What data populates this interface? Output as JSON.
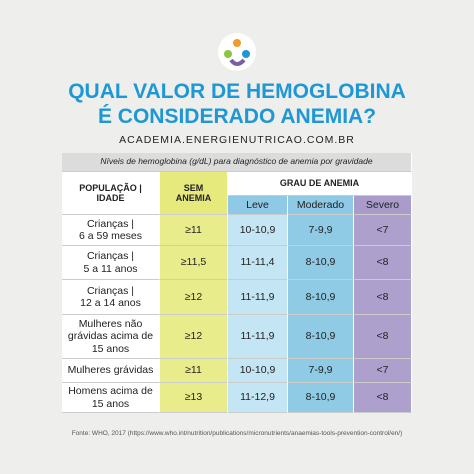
{
  "header": {
    "title_lines": [
      "QUAL VALOR DE HEMOGLOBINA",
      "É CONSIDERADO ANEMIA?"
    ],
    "website": "ACADEMIA.ENERGIENUTRICAO.COM.BR"
  },
  "table": {
    "caption": "Níveis de hemoglobina (g/dL) para diagnóstico de anemia por gravidade",
    "headers": {
      "population": [
        "POPULAÇÃO |",
        "IDADE"
      ],
      "no_anemia": [
        "SEM",
        "ANEMIA"
      ],
      "group": "GRAU DE ANEMIA",
      "levels": [
        "Leve",
        "Moderado",
        "Severo"
      ]
    },
    "rows": [
      {
        "population": [
          "Crianças |",
          "6 a 59 meses"
        ],
        "values": [
          "≥11",
          "10-10,9",
          "7-9,9",
          "<7"
        ]
      },
      {
        "population": [
          "Crianças |",
          "5 a 11 anos"
        ],
        "values": [
          "≥11,5",
          "11-11,4",
          "8-10,9",
          "<8"
        ]
      },
      {
        "population": [
          "Crianças |",
          "12 a 14 anos"
        ],
        "values": [
          "≥12",
          "11-11,9",
          "8-10,9",
          "<8"
        ]
      },
      {
        "population": [
          "Mulheres não",
          "grávidas acima de",
          "15 anos"
        ],
        "values": [
          "≥12",
          "11-11,9",
          "8-10,9",
          "<8"
        ]
      },
      {
        "population": [
          "Mulheres grávidas"
        ],
        "values": [
          "≥11",
          "10-10,9",
          "7-9,9",
          "<7"
        ]
      },
      {
        "population": [
          "Homens acima de",
          "15 anos"
        ],
        "values": [
          "≥13",
          "11-12,9",
          "8-10,9",
          "<8"
        ]
      }
    ]
  },
  "footer": {
    "source": "Fonte: WHO, 2017 (https://www.who.int/nutrition/publications/micronutrients/anaemias-tools-prevention-control/en/)"
  }
}
